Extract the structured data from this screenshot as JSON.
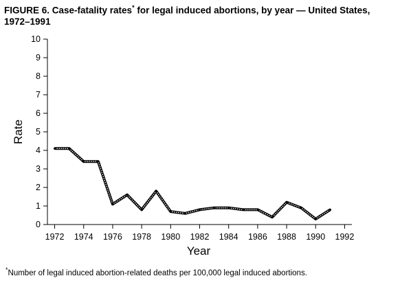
{
  "title": {
    "text": "FIGURE 6. Case-fatality rates",
    "marker": "*",
    "text_after": " for legal induced abortions, by year — United States, 1972–1991"
  },
  "chart_data": {
    "type": "line",
    "xlabel": "Year",
    "ylabel": "Rate",
    "xlim": [
      1971.5,
      1992.5
    ],
    "ylim": [
      0,
      10
    ],
    "x_ticks": [
      1972,
      1974,
      1976,
      1978,
      1980,
      1982,
      1984,
      1986,
      1988,
      1990,
      1992
    ],
    "y_ticks": [
      0,
      1,
      2,
      3,
      4,
      5,
      6,
      7,
      8,
      9,
      10
    ],
    "grid": false,
    "series": [
      {
        "x": [
          1972,
          1973,
          1974,
          1975,
          1976,
          1977,
          1978,
          1979,
          1980,
          1981,
          1982,
          1983,
          1984,
          1985,
          1986,
          1987,
          1988,
          1989,
          1990,
          1991
        ],
        "y": [
          4.1,
          4.1,
          3.4,
          3.4,
          1.1,
          1.6,
          0.8,
          1.8,
          0.7,
          0.6,
          0.8,
          0.9,
          0.9,
          0.8,
          0.8,
          0.4,
          1.2,
          0.9,
          0.3,
          0.8
        ]
      }
    ]
  },
  "footnote": {
    "marker": "*",
    "text": "Number of legal induced abortion-related deaths per 100,000 legal induced abortions."
  }
}
